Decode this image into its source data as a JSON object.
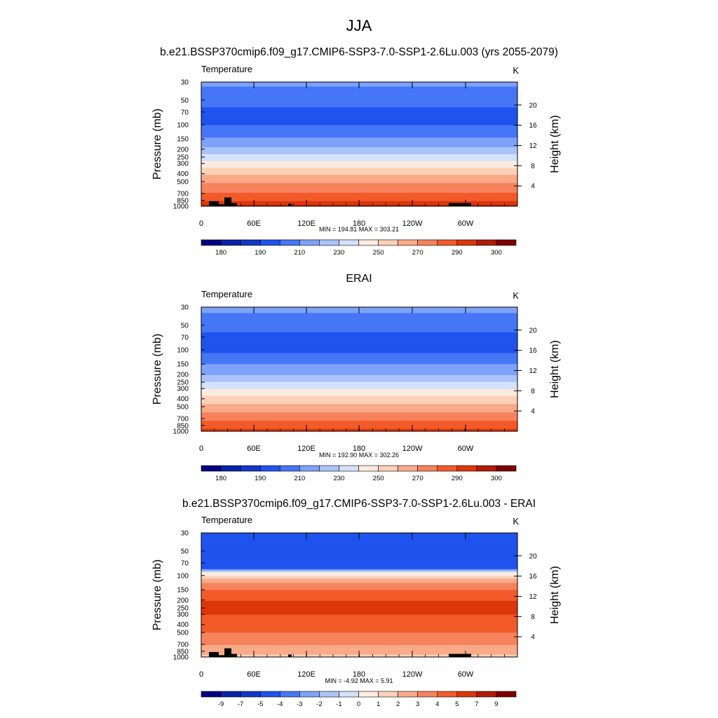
{
  "figure": {
    "season": "JJA"
  },
  "panel_titles": [
    "b.e21.BSSP370cmip6.f09_g17.CMIP6-SSP3-7.0-SSP1-2.6Lu.003 (yrs 2055-2079)",
    "ERAI",
    "b.e21.BSSP370cmip6.f09_g17.CMIP6-SSP3-7.0-SSP1-2.6Lu.003 - ERAI"
  ],
  "chart_data": [
    {
      "type": "heatmap",
      "variable": "Temperature",
      "units": "K",
      "ylabel": "Pressure (mb)",
      "y2label": "Height (km)",
      "pressure_ticks": [
        30,
        50,
        70,
        100,
        150,
        200,
        250,
        300,
        400,
        500,
        700,
        850,
        1000
      ],
      "height_ticks": [
        4,
        8,
        12,
        16,
        20
      ],
      "lon_ticks": [
        "0",
        "60E",
        "120E",
        "180",
        "120W",
        "60W"
      ],
      "stats": "MIN = 194.81  MAX = 303.21",
      "colorbar_labels": [
        "180",
        "190",
        "210",
        "230",
        "250",
        "270",
        "290",
        "300"
      ],
      "zonal_profile": [
        [
          1000,
          296
        ],
        [
          850,
          289
        ],
        [
          700,
          282
        ],
        [
          500,
          269
        ],
        [
          400,
          259
        ],
        [
          300,
          245
        ],
        [
          250,
          235
        ],
        [
          200,
          223
        ],
        [
          150,
          212
        ],
        [
          100,
          200
        ],
        [
          70,
          198
        ],
        [
          50,
          203
        ],
        [
          30,
          212
        ]
      ]
    },
    {
      "type": "heatmap",
      "variable": "Temperature",
      "units": "K",
      "ylabel": "Pressure (mb)",
      "y2label": "Height (km)",
      "pressure_ticks": [
        30,
        50,
        70,
        100,
        150,
        200,
        250,
        300,
        400,
        500,
        700,
        850,
        1000
      ],
      "height_ticks": [
        4,
        8,
        12,
        16,
        20
      ],
      "lon_ticks": [
        "0",
        "60E",
        "120E",
        "180",
        "120W",
        "60W"
      ],
      "stats": "MIN = 192.90  MAX = 302.26",
      "colorbar_labels": [
        "180",
        "190",
        "210",
        "230",
        "250",
        "270",
        "290",
        "300"
      ],
      "zonal_profile": [
        [
          1000,
          294
        ],
        [
          850,
          285
        ],
        [
          700,
          278
        ],
        [
          500,
          264
        ],
        [
          400,
          254
        ],
        [
          300,
          240
        ],
        [
          250,
          231
        ],
        [
          200,
          220
        ],
        [
          150,
          210
        ],
        [
          100,
          198
        ],
        [
          70,
          197
        ],
        [
          50,
          204
        ],
        [
          30,
          213
        ]
      ]
    },
    {
      "type": "heatmap",
      "variable": "Temperature",
      "units": "K",
      "ylabel": "Pressure (mb)",
      "y2label": "Height (km)",
      "pressure_ticks": [
        30,
        50,
        70,
        100,
        150,
        200,
        250,
        300,
        400,
        500,
        700,
        850,
        1000
      ],
      "height_ticks": [
        4,
        8,
        12,
        16,
        20
      ],
      "lon_ticks": [
        "0",
        "60E",
        "120E",
        "180",
        "120W",
        "60W"
      ],
      "stats": "MIN =  -4.92  MAX =   5.91",
      "colorbar_labels": [
        "-9",
        "-7",
        "-5",
        "-4",
        "-3",
        "-2",
        "-1",
        "0",
        "1",
        "2",
        "3",
        "4",
        "5",
        "7",
        "9"
      ],
      "zonal_profile": [
        [
          1000,
          1.5
        ],
        [
          850,
          2.5
        ],
        [
          700,
          3.0
        ],
        [
          500,
          4.0
        ],
        [
          400,
          4.5
        ],
        [
          300,
          5.0
        ],
        [
          250,
          5.0
        ],
        [
          200,
          5.0
        ],
        [
          150,
          4.0
        ],
        [
          120,
          3.0
        ],
        [
          100,
          1.0
        ],
        [
          90,
          0
        ],
        [
          80,
          -4.5
        ],
        [
          30,
          -4.5
        ]
      ]
    }
  ],
  "colors": {
    "abs_palette": [
      "#000080",
      "#0a22a8",
      "#1436c6",
      "#1f53ee",
      "#4576f6",
      "#7ea2f8",
      "#abc3f7",
      "#d3e1fb",
      "#fbebe0",
      "#fdd0b8",
      "#f9aa89",
      "#f6835c",
      "#f25a2a",
      "#dc360a",
      "#b01b05",
      "#7e0000"
    ],
    "diff_palette": [
      "#000080",
      "#0a22a8",
      "#1436c6",
      "#1f53ee",
      "#4576f6",
      "#7ea2f8",
      "#abc3f7",
      "#d3e1fb",
      "#fbebe0",
      "#fdd0b8",
      "#f9aa89",
      "#f6835c",
      "#f25a2a",
      "#dc360a",
      "#b01b05",
      "#7e0000"
    ],
    "terrain": "#000000"
  }
}
